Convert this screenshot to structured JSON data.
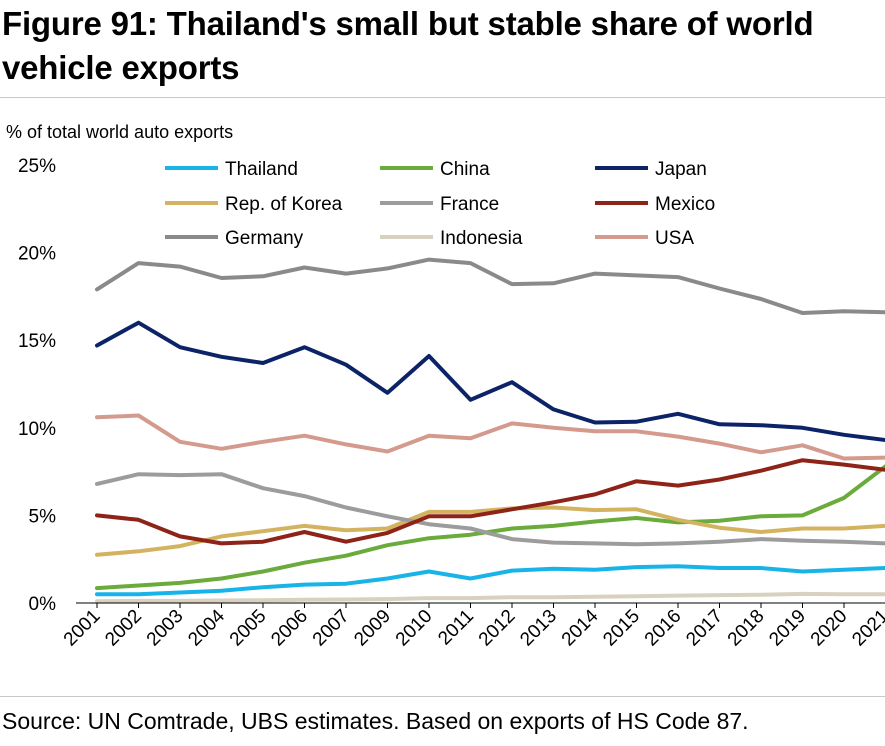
{
  "title": "Figure 91: Thailand's small but stable share of world vehicle exports",
  "source": "Source: UN Comtrade, UBS estimates. Based on exports of HS Code 87.",
  "chart_data": {
    "type": "line",
    "ylabel": "% of total world auto exports",
    "yticks": [
      "25%",
      "20%",
      "15%",
      "10%",
      "5%",
      "0%"
    ],
    "ylim": [
      0,
      25
    ],
    "categories": [
      "2001",
      "2002",
      "2003",
      "2004",
      "2005",
      "2006",
      "2007",
      "2009",
      "2010",
      "2011",
      "2012",
      "2013",
      "2014",
      "2015",
      "2016",
      "2017",
      "2018",
      "2019",
      "2020",
      "2021"
    ],
    "legend_placement": "top",
    "series": [
      {
        "name": "Thailand",
        "color": "#18b4e8",
        "values": [
          0.5,
          0.5,
          0.6,
          0.7,
          0.9,
          1.05,
          1.1,
          1.4,
          1.8,
          1.4,
          1.85,
          1.95,
          1.9,
          2.05,
          2.1,
          2.0,
          2.0,
          1.8,
          1.9,
          2.0
        ]
      },
      {
        "name": "China",
        "color": "#6aab3c",
        "values": [
          0.85,
          1.0,
          1.15,
          1.4,
          1.8,
          2.3,
          2.7,
          3.3,
          3.7,
          3.9,
          4.25,
          4.4,
          4.65,
          4.85,
          4.6,
          4.7,
          4.95,
          5.0,
          6.0,
          7.8
        ]
      },
      {
        "name": "Japan",
        "color": "#0c2467",
        "values": [
          14.7,
          16.0,
          14.6,
          14.05,
          13.7,
          14.6,
          13.6,
          12.0,
          14.1,
          11.6,
          12.6,
          11.05,
          10.3,
          10.35,
          10.8,
          10.2,
          10.15,
          10.0,
          9.6,
          9.3
        ]
      },
      {
        "name": "Rep. of Korea",
        "color": "#d4b360",
        "values": [
          2.75,
          2.95,
          3.25,
          3.8,
          4.1,
          4.4,
          4.15,
          4.25,
          5.2,
          5.2,
          5.4,
          5.45,
          5.3,
          5.35,
          4.75,
          4.3,
          4.05,
          4.25,
          4.25,
          4.4
        ]
      },
      {
        "name": "France",
        "color": "#9c9c9c",
        "values": [
          6.8,
          7.35,
          7.3,
          7.35,
          6.55,
          6.1,
          5.45,
          4.95,
          4.5,
          4.25,
          3.65,
          3.45,
          3.4,
          3.35,
          3.4,
          3.5,
          3.65,
          3.55,
          3.5,
          3.4
        ]
      },
      {
        "name": "Mexico",
        "color": "#8e2318",
        "values": [
          5.0,
          4.75,
          3.8,
          3.4,
          3.5,
          4.05,
          3.5,
          4.0,
          4.95,
          4.95,
          5.35,
          5.75,
          6.2,
          6.95,
          6.7,
          7.05,
          7.55,
          8.15,
          7.9,
          7.6
        ]
      },
      {
        "name": "Germany",
        "color": "#8a8a8a",
        "values": [
          17.9,
          19.4,
          19.2,
          18.55,
          18.65,
          19.15,
          18.8,
          19.1,
          19.6,
          19.4,
          18.2,
          18.25,
          18.8,
          18.7,
          18.6,
          17.95,
          17.35,
          16.55,
          16.65,
          16.6
        ]
      },
      {
        "name": "Indonesia",
        "color": "#d9d1bf",
        "values": [
          0.1,
          0.12,
          0.12,
          0.14,
          0.16,
          0.18,
          0.2,
          0.22,
          0.28,
          0.28,
          0.33,
          0.33,
          0.36,
          0.38,
          0.42,
          0.45,
          0.47,
          0.52,
          0.5,
          0.5
        ]
      },
      {
        "name": "USA",
        "color": "#d49a8e",
        "values": [
          10.6,
          10.7,
          9.2,
          8.8,
          9.2,
          9.55,
          9.05,
          8.65,
          9.55,
          9.4,
          10.25,
          10.0,
          9.8,
          9.8,
          9.5,
          9.1,
          8.6,
          9.0,
          8.25,
          8.3
        ]
      }
    ]
  }
}
